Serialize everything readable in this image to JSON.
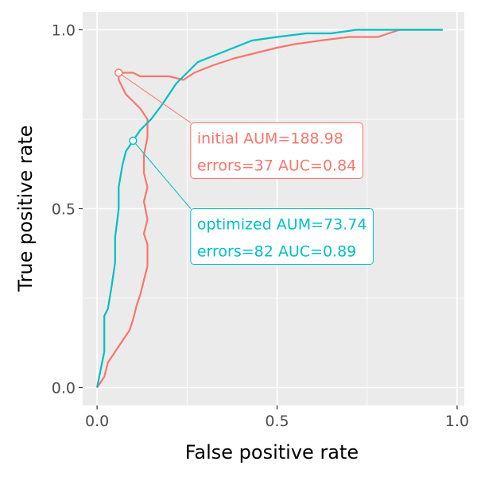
{
  "chart_data": {
    "type": "line",
    "title": "",
    "xlabel": "False positive rate",
    "ylabel": "True positive rate",
    "xlim": [
      -0.04,
      1.02
    ],
    "ylim": [
      -0.05,
      1.05
    ],
    "x_ticks": [
      0.0,
      0.5,
      1.0
    ],
    "x_tick_labels": [
      "0.0",
      "0.5",
      "1.0"
    ],
    "y_ticks": [
      0.0,
      0.5,
      1.0
    ],
    "y_tick_labels": [
      "0.0",
      "0.5",
      "1.0"
    ],
    "minor_ticks": [
      0.25,
      0.75
    ],
    "background": "#EBEBEB",
    "grid": true,
    "legend": "none",
    "series": [
      {
        "name": "initial",
        "color": "#F8766D",
        "points": [
          [
            0.0,
            0.0
          ],
          [
            0.02,
            0.03
          ],
          [
            0.03,
            0.07
          ],
          [
            0.05,
            0.1
          ],
          [
            0.07,
            0.13
          ],
          [
            0.09,
            0.16
          ],
          [
            0.1,
            0.19
          ],
          [
            0.11,
            0.23
          ],
          [
            0.12,
            0.26
          ],
          [
            0.13,
            0.3
          ],
          [
            0.14,
            0.34
          ],
          [
            0.14,
            0.4
          ],
          [
            0.13,
            0.43
          ],
          [
            0.14,
            0.47
          ],
          [
            0.13,
            0.52
          ],
          [
            0.14,
            0.56
          ],
          [
            0.13,
            0.6
          ],
          [
            0.13,
            0.65
          ],
          [
            0.14,
            0.7
          ],
          [
            0.14,
            0.75
          ],
          [
            0.12,
            0.78
          ],
          [
            0.1,
            0.8
          ],
          [
            0.08,
            0.82
          ],
          [
            0.07,
            0.84
          ],
          [
            0.06,
            0.86
          ],
          [
            0.06,
            0.88
          ],
          [
            0.08,
            0.88
          ],
          [
            0.1,
            0.88
          ],
          [
            0.12,
            0.87
          ],
          [
            0.16,
            0.87
          ],
          [
            0.2,
            0.87
          ],
          [
            0.24,
            0.86
          ],
          [
            0.27,
            0.88
          ],
          [
            0.32,
            0.9
          ],
          [
            0.38,
            0.92
          ],
          [
            0.42,
            0.93
          ],
          [
            0.46,
            0.94
          ],
          [
            0.5,
            0.95
          ],
          [
            0.55,
            0.96
          ],
          [
            0.62,
            0.97
          ],
          [
            0.7,
            0.98
          ],
          [
            0.78,
            0.98
          ],
          [
            0.84,
            1.0
          ],
          [
            0.9,
            1.0
          ],
          [
            0.96,
            1.0
          ]
        ],
        "highlight": [
          0.06,
          0.88
        ]
      },
      {
        "name": "optimized",
        "color": "#00BFC4",
        "points": [
          [
            0.0,
            0.0
          ],
          [
            0.01,
            0.05
          ],
          [
            0.02,
            0.1
          ],
          [
            0.02,
            0.15
          ],
          [
            0.02,
            0.2
          ],
          [
            0.03,
            0.22
          ],
          [
            0.04,
            0.28
          ],
          [
            0.05,
            0.35
          ],
          [
            0.05,
            0.42
          ],
          [
            0.06,
            0.5
          ],
          [
            0.06,
            0.56
          ],
          [
            0.07,
            0.62
          ],
          [
            0.08,
            0.66
          ],
          [
            0.1,
            0.69
          ],
          [
            0.12,
            0.72
          ],
          [
            0.15,
            0.75
          ],
          [
            0.18,
            0.79
          ],
          [
            0.2,
            0.82
          ],
          [
            0.22,
            0.85
          ],
          [
            0.25,
            0.88
          ],
          [
            0.28,
            0.91
          ],
          [
            0.33,
            0.93
          ],
          [
            0.38,
            0.95
          ],
          [
            0.43,
            0.97
          ],
          [
            0.5,
            0.98
          ],
          [
            0.58,
            0.99
          ],
          [
            0.65,
            0.99
          ],
          [
            0.72,
            1.0
          ],
          [
            0.8,
            1.0
          ],
          [
            0.9,
            1.0
          ],
          [
            0.96,
            1.0
          ]
        ],
        "highlight": [
          0.1,
          0.69
        ]
      }
    ],
    "annotations": [
      {
        "series": "initial",
        "color": "#F8766D",
        "line1": "initial AUM=188.98",
        "line2": "errors=37 AUC=0.84",
        "anchor": [
          0.26,
          0.74
        ]
      },
      {
        "series": "optimized",
        "color": "#00BFC4",
        "line1": "optimized AUM=73.74",
        "line2": "errors=82 AUC=0.89",
        "anchor": [
          0.26,
          0.5
        ]
      }
    ]
  }
}
